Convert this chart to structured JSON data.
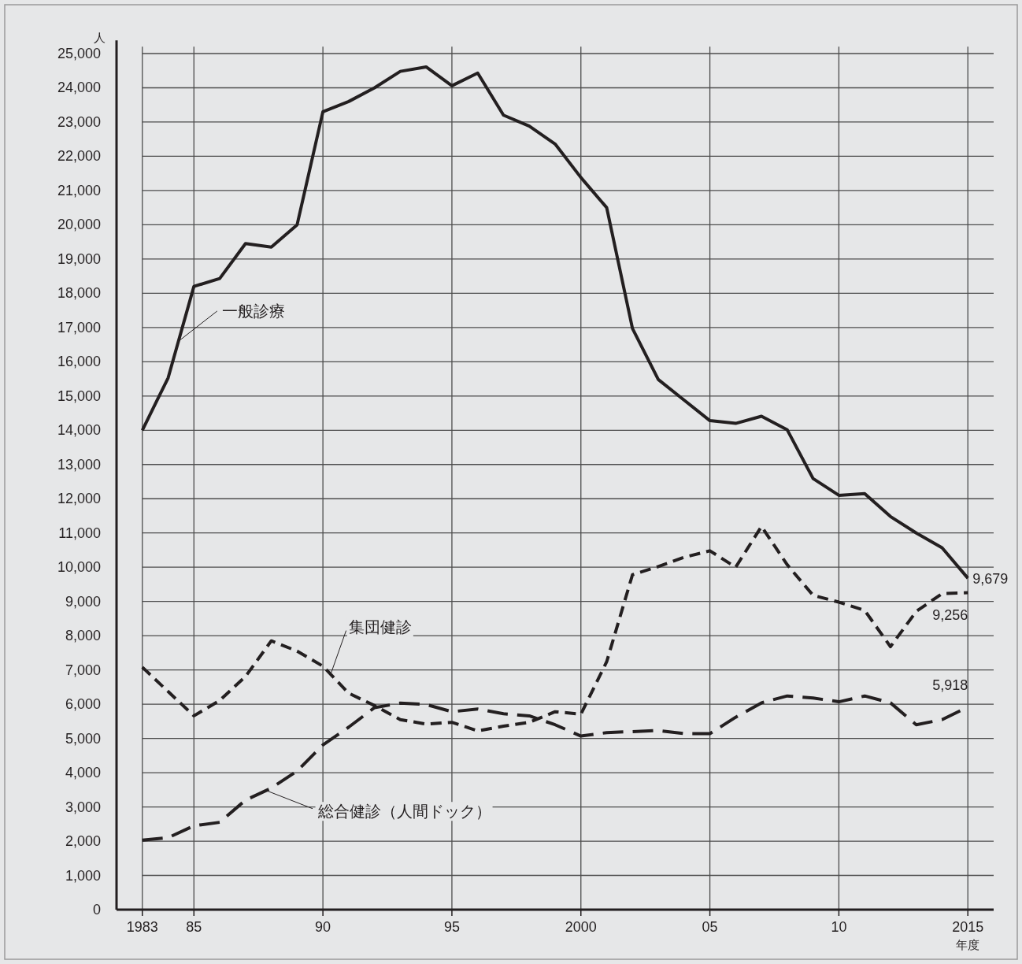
{
  "chart_data": {
    "type": "line",
    "xlabel": "年度",
    "ylabel": "人",
    "x": [
      1983,
      1984,
      1985,
      1986,
      1987,
      1988,
      1989,
      1990,
      1991,
      1992,
      1993,
      1994,
      1995,
      1996,
      1997,
      1998,
      1999,
      2000,
      2001,
      2002,
      2003,
      2004,
      2005,
      2006,
      2007,
      2008,
      2009,
      2010,
      2011,
      2012,
      2013,
      2014,
      2015
    ],
    "series": [
      {
        "name": "一般診療",
        "color": "#231f20",
        "line_style": "solid",
        "values": [
          14000,
          15530,
          18200,
          18430,
          19450,
          19350,
          20000,
          23300,
          23600,
          24000,
          24480,
          24610,
          24060,
          24430,
          23200,
          22880,
          22360,
          21380,
          20500,
          16970,
          15480,
          14880,
          14280,
          14200,
          14410,
          14010,
          12590,
          12100,
          12150,
          11480,
          11000,
          10570,
          9679
        ],
        "value_labels": [
          null,
          null,
          null,
          null,
          null,
          null,
          null,
          null,
          null,
          null,
          null,
          null,
          null,
          null,
          null,
          null,
          null,
          null,
          null,
          null,
          null,
          null,
          null,
          null,
          null,
          null,
          null,
          null,
          null,
          null,
          null,
          null,
          "9,679"
        ]
      },
      {
        "name": "集団健診",
        "color": "#231f20",
        "line_style": "dashed",
        "values": [
          7080,
          6370,
          5660,
          6110,
          6810,
          7850,
          7550,
          7110,
          6320,
          5960,
          5550,
          5420,
          5470,
          5220,
          5360,
          5470,
          5780,
          5710,
          7240,
          9780,
          10020,
          10290,
          10480,
          10000,
          11190,
          10070,
          9180,
          8980,
          8740,
          7680,
          8710,
          9230,
          9256
        ],
        "value_labels": [
          null,
          null,
          null,
          null,
          null,
          null,
          null,
          null,
          null,
          null,
          null,
          null,
          null,
          null,
          null,
          null,
          null,
          null,
          null,
          null,
          null,
          null,
          null,
          null,
          null,
          null,
          null,
          null,
          null,
          null,
          null,
          null,
          "9,256"
        ]
      },
      {
        "name": "総合健診（人間ドック）",
        "color": "#231f20",
        "line_style": "dashed",
        "values": [
          2030,
          2100,
          2450,
          2550,
          3200,
          3550,
          4050,
          4810,
          5330,
          5900,
          6030,
          5990,
          5780,
          5860,
          5720,
          5660,
          5400,
          5070,
          5170,
          5200,
          5230,
          5140,
          5140,
          5620,
          6040,
          6240,
          6180,
          6070,
          6240,
          6040,
          5400,
          5550,
          5918
        ],
        "value_labels": [
          null,
          null,
          null,
          null,
          null,
          null,
          null,
          null,
          null,
          null,
          null,
          null,
          null,
          null,
          null,
          null,
          null,
          null,
          null,
          null,
          null,
          null,
          null,
          null,
          null,
          null,
          null,
          null,
          null,
          null,
          null,
          null,
          "5,918"
        ]
      }
    ],
    "xlim": [
      1982,
      2016
    ],
    "ylim": [
      0,
      25200
    ],
    "xticks": [
      1983,
      {
        "value": 1985,
        "label": "85"
      },
      {
        "value": 1990,
        "label": "90"
      },
      {
        "value": 1995,
        "label": "95"
      },
      2000,
      {
        "value": 2005,
        "label": "05"
      },
      {
        "value": 2010,
        "label": "10"
      },
      2015
    ],
    "yticks": [
      {
        "value": 0,
        "label": "0"
      },
      {
        "value": 1000,
        "label": "1,000"
      },
      {
        "value": 2000,
        "label": "2,000"
      },
      {
        "value": 3000,
        "label": "3,000"
      },
      {
        "value": 4000,
        "label": "4,000"
      },
      {
        "value": 5000,
        "label": "5,000"
      },
      {
        "value": 6000,
        "label": "6,000"
      },
      {
        "value": 7000,
        "label": "7,000"
      },
      {
        "value": 8000,
        "label": "8,000"
      },
      {
        "value": 9000,
        "label": "9,000"
      },
      {
        "value": 10000,
        "label": "10,000"
      },
      {
        "value": 11000,
        "label": "11,000"
      },
      {
        "value": 12000,
        "label": "12,000"
      },
      {
        "value": 13000,
        "label": "13,000"
      },
      {
        "value": 14000,
        "label": "14,000"
      },
      {
        "value": 15000,
        "label": "15,000"
      },
      {
        "value": 16000,
        "label": "16,000"
      },
      {
        "value": 17000,
        "label": "17,000"
      },
      {
        "value": 18000,
        "label": "18,000"
      },
      {
        "value": 19000,
        "label": "19,000"
      },
      {
        "value": 20000,
        "label": "20,000"
      },
      {
        "value": 21000,
        "label": "21,000"
      },
      {
        "value": 22000,
        "label": "22,000"
      },
      {
        "value": 23000,
        "label": "23,000"
      },
      {
        "value": 24000,
        "label": "24,000"
      },
      {
        "value": 25000,
        "label": "25,000"
      }
    ],
    "grid": true
  }
}
